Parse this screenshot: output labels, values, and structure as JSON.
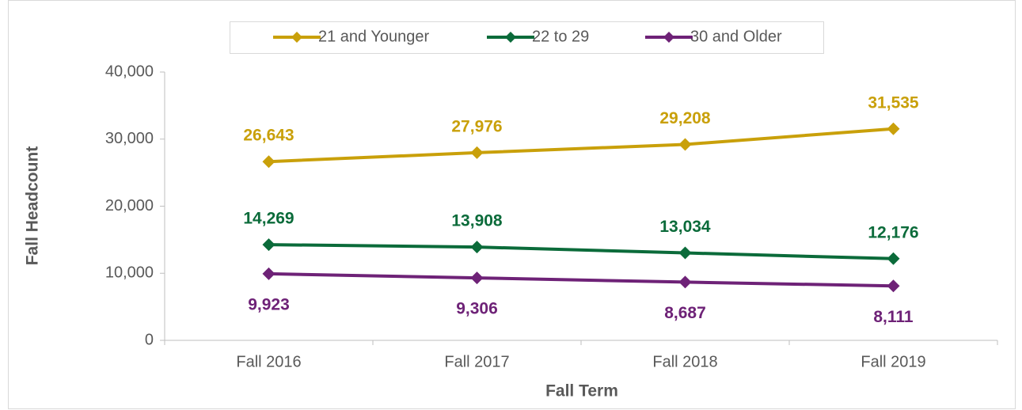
{
  "chart_data": {
    "type": "line",
    "x_label": "Fall Term",
    "y_label": "Fall Headcount",
    "categories": [
      "Fall 2016",
      "Fall 2017",
      "Fall 2018",
      "Fall 2019"
    ],
    "series": [
      {
        "name": "21 and Younger",
        "color": "#C9A00A",
        "values": [
          26643,
          27976,
          29208,
          31535
        ],
        "value_labels": [
          "26,643",
          "27,976",
          "29,208",
          "31,535"
        ]
      },
      {
        "name": "22 to 29",
        "color": "#0B6B3A",
        "values": [
          14269,
          13908,
          13034,
          12176
        ],
        "value_labels": [
          "14,269",
          "13,908",
          "13,034",
          "12,176"
        ]
      },
      {
        "name": "30 and Older",
        "color": "#6E2277",
        "values": [
          9923,
          9306,
          8687,
          8111
        ],
        "value_labels": [
          "9,923",
          "9,306",
          "8,687",
          "8,111"
        ]
      }
    ],
    "ylim": [
      0,
      40000
    ],
    "yticks": [
      0,
      {
        "value": 10000,
        "label": "10,000"
      },
      {
        "value": 20000,
        "label": "20,000"
      },
      {
        "value": 30000,
        "label": "30,000"
      },
      {
        "value": 40000,
        "label": "40,000"
      }
    ],
    "legend": "top"
  }
}
